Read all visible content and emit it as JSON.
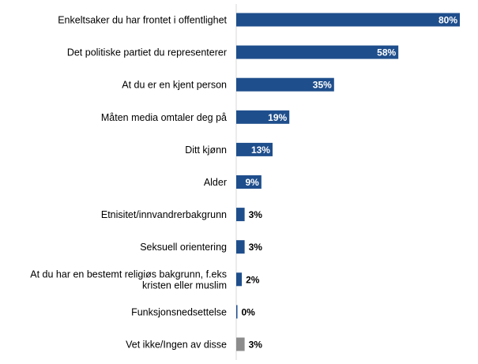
{
  "chart_data": {
    "type": "bar",
    "orientation": "horizontal",
    "categories": [
      "Enkeltsaker du har frontet i offentlighet",
      "Det politiske partiet du representerer",
      "At du er en kjent person",
      "Måten media omtaler deg på",
      "Ditt kjønn",
      "Alder",
      "Etnisitet/innvandrerbakgrunn",
      "Seksuell orientering",
      "At du har en bestemt religiøs bakgrunn, f.eks kristen eller muslim",
      "Funksjonsnedsettelse",
      "Vet ikke/Ingen av disse"
    ],
    "category_lines": [
      [
        "Enkeltsaker du har frontet i offentlighet"
      ],
      [
        "Det politiske partiet du representerer"
      ],
      [
        "At du er en kjent person"
      ],
      [
        "Måten media omtaler deg på"
      ],
      [
        "Ditt kjønn"
      ],
      [
        "Alder"
      ],
      [
        "Etnisitet/innvandrerbakgrunn"
      ],
      [
        "Seksuell orientering"
      ],
      [
        "At du har en bestemt religiøs bakgrunn, f.eks",
        "kristen eller muslim"
      ],
      [
        "Funksjonsnedsettelse"
      ],
      [
        "Vet ikke/Ingen av disse"
      ]
    ],
    "values": [
      80,
      58,
      35,
      19,
      13,
      9,
      3,
      3,
      2,
      0,
      3
    ],
    "labels": [
      "80%",
      "58%",
      "35%",
      "19%",
      "13%",
      "9%",
      "3%",
      "3%",
      "2%",
      "0%",
      "3%"
    ],
    "bar_colors": [
      "#1f4e8c",
      "#1f4e8c",
      "#1f4e8c",
      "#1f4e8c",
      "#1f4e8c",
      "#1f4e8c",
      "#1f4e8c",
      "#1f4e8c",
      "#1f4e8c",
      "#1f4e8c",
      "#8c8c8c"
    ],
    "label_inside": [
      true,
      true,
      true,
      true,
      true,
      true,
      false,
      false,
      false,
      false,
      false
    ],
    "xlim": [
      0,
      80
    ],
    "grid": false,
    "legend": "none",
    "label_color_inside": "#ffffff",
    "label_color_outside": "#000000"
  }
}
